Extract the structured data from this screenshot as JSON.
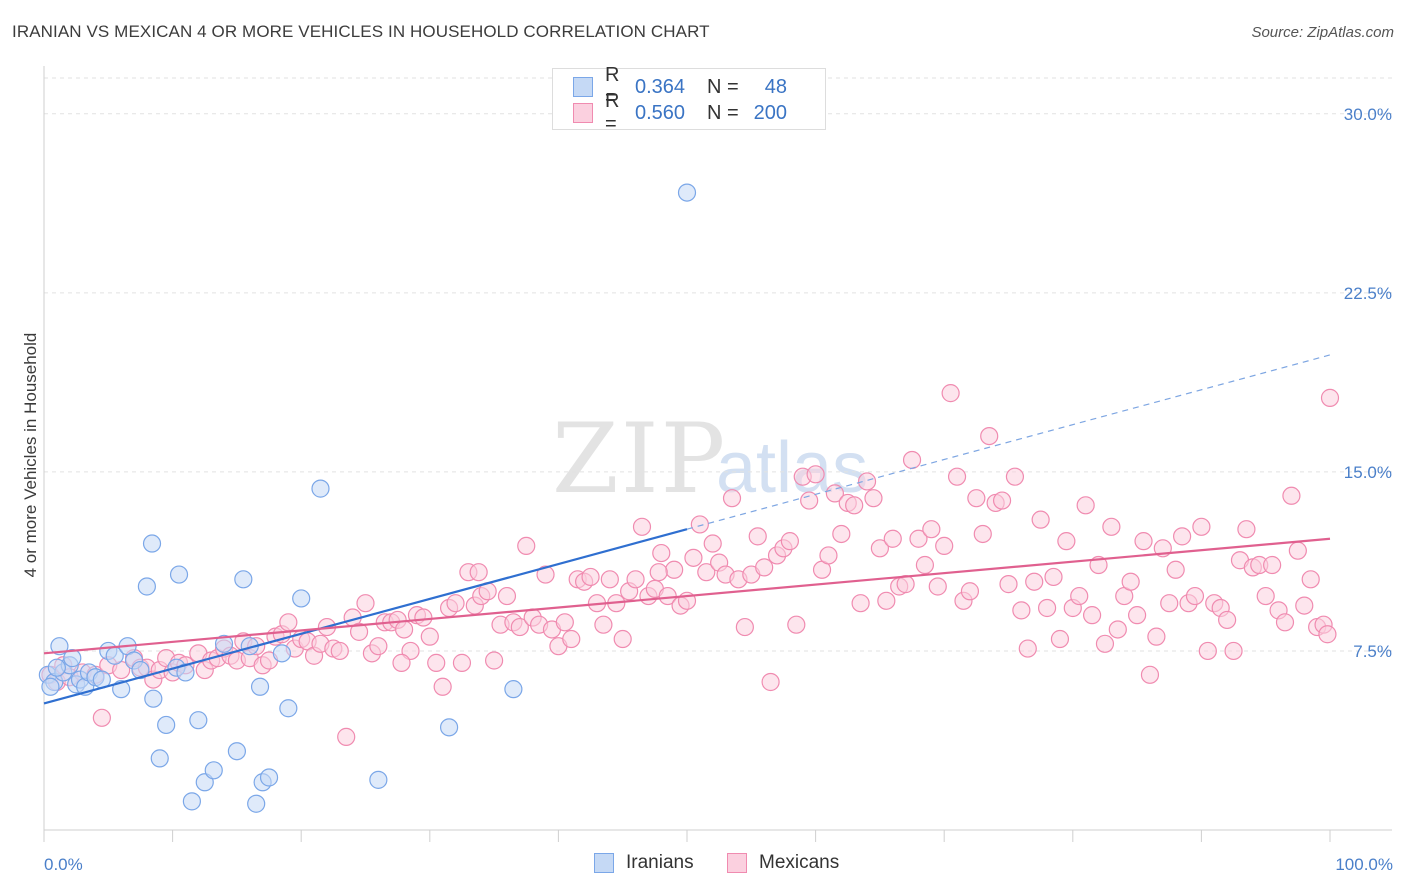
{
  "title": "IRANIAN VS MEXICAN 4 OR MORE VEHICLES IN HOUSEHOLD CORRELATION CHART",
  "source": "Source: ZipAtlas.com",
  "watermark": {
    "zip": "ZIP",
    "atlas": "atlas"
  },
  "legend": {
    "series": [
      {
        "r_label": "R =",
        "r_value": "0.364",
        "n_label": "N =",
        "n_value": "48",
        "color": "#7ba7e8",
        "fill": "#c5d9f5"
      },
      {
        "r_label": "R =",
        "r_value": "0.560",
        "n_label": "N =",
        "n_value": "200",
        "color": "#f08bb0",
        "fill": "#fbd0df"
      }
    ]
  },
  "bottom_legend": [
    {
      "label": "Iranians",
      "color": "#7ba7e8",
      "fill": "#c5d9f5"
    },
    {
      "label": "Mexicans",
      "color": "#f08bb0",
      "fill": "#fbd0df"
    }
  ],
  "chart_data": {
    "type": "scatter",
    "title": "IRANIAN VS MEXICAN 4 OR MORE VEHICLES IN HOUSEHOLD CORRELATION CHART",
    "xlabel": "",
    "ylabel": "4 or more Vehicles in Household",
    "xlim": [
      0,
      100
    ],
    "ylim": [
      0,
      31.5
    ],
    "x_tick_labels": [
      {
        "value": 0,
        "label": "0.0%"
      },
      {
        "value": 100,
        "label": "100.0%"
      }
    ],
    "y_ticks": [
      {
        "value": 7.5,
        "label": "7.5%"
      },
      {
        "value": 15,
        "label": "15.0%"
      },
      {
        "value": 22.5,
        "label": "22.5%"
      },
      {
        "value": 30,
        "label": "30.0%"
      }
    ],
    "x_minor_ticks": [
      0,
      10,
      20,
      30,
      40,
      50,
      60,
      70,
      80,
      90,
      100
    ],
    "series": [
      {
        "name": "Iranians",
        "color": "#7ba7e8",
        "fill": "#c5d9f5",
        "trend": {
          "x0": 0,
          "y0": 5.3,
          "x1": 50,
          "y1": 12.6,
          "dash_to_x": 100,
          "dash_to_y": 19.9,
          "line_color": "#2f6fd0"
        },
        "points": [
          [
            0.3,
            6.5
          ],
          [
            0.8,
            6.2
          ],
          [
            1.2,
            7.7
          ],
          [
            1.5,
            6.6
          ],
          [
            2.0,
            6.9
          ],
          [
            2.5,
            6.1
          ],
          [
            2.8,
            6.3
          ],
          [
            3.2,
            6.0
          ],
          [
            3.5,
            6.6
          ],
          [
            4.0,
            6.4
          ],
          [
            4.5,
            6.3
          ],
          [
            5.0,
            7.5
          ],
          [
            5.5,
            7.3
          ],
          [
            6.0,
            5.9
          ],
          [
            6.5,
            7.7
          ],
          [
            7.0,
            7.1
          ],
          [
            7.5,
            6.7
          ],
          [
            8.0,
            10.2
          ],
          [
            8.4,
            12.0
          ],
          [
            8.5,
            5.5
          ],
          [
            9.0,
            3.0
          ],
          [
            9.5,
            4.4
          ],
          [
            10.3,
            6.8
          ],
          [
            10.5,
            10.7
          ],
          [
            11.0,
            6.6
          ],
          [
            11.5,
            1.2
          ],
          [
            12.0,
            4.6
          ],
          [
            12.5,
            2.0
          ],
          [
            13.2,
            2.5
          ],
          [
            14.0,
            7.8
          ],
          [
            15.0,
            3.3
          ],
          [
            15.5,
            10.5
          ],
          [
            16.0,
            7.7
          ],
          [
            16.5,
            1.1
          ],
          [
            16.8,
            6.0
          ],
          [
            17.0,
            2.0
          ],
          [
            17.5,
            2.2
          ],
          [
            18.5,
            7.4
          ],
          [
            19.0,
            5.1
          ],
          [
            20.0,
            9.7
          ],
          [
            21.5,
            14.3
          ],
          [
            26.0,
            2.1
          ],
          [
            31.5,
            4.3
          ],
          [
            36.5,
            5.9
          ],
          [
            50.0,
            26.7
          ],
          [
            0.5,
            6.0
          ],
          [
            1.0,
            6.8
          ],
          [
            2.2,
            7.2
          ]
        ]
      },
      {
        "name": "Mexicans",
        "color": "#f08bb0",
        "fill": "#fbd0df",
        "trend": {
          "x0": 0,
          "y0": 7.4,
          "x1": 100,
          "y1": 12.2,
          "line_color": "#e0608f"
        },
        "points": [
          [
            0.5,
            6.5
          ],
          [
            1.0,
            6.2
          ],
          [
            1.5,
            6.9
          ],
          [
            2.0,
            6.4
          ],
          [
            3.0,
            6.6
          ],
          [
            4.0,
            6.5
          ],
          [
            4.5,
            4.7
          ],
          [
            5.0,
            6.9
          ],
          [
            6.0,
            6.7
          ],
          [
            7.0,
            7.2
          ],
          [
            7.5,
            6.8
          ],
          [
            8.0,
            6.8
          ],
          [
            8.5,
            6.3
          ],
          [
            9.0,
            6.7
          ],
          [
            9.5,
            7.2
          ],
          [
            10.0,
            6.6
          ],
          [
            10.5,
            7.0
          ],
          [
            11.0,
            6.9
          ],
          [
            12.0,
            7.4
          ],
          [
            12.5,
            6.7
          ],
          [
            13.0,
            7.1
          ],
          [
            13.5,
            7.2
          ],
          [
            14.0,
            7.6
          ],
          [
            14.5,
            7.3
          ],
          [
            15.0,
            7.1
          ],
          [
            15.5,
            7.9
          ],
          [
            16.0,
            7.2
          ],
          [
            16.5,
            7.7
          ],
          [
            17.0,
            6.9
          ],
          [
            17.5,
            7.1
          ],
          [
            18.0,
            8.1
          ],
          [
            18.5,
            8.2
          ],
          [
            19.0,
            8.7
          ],
          [
            19.5,
            7.6
          ],
          [
            20.0,
            8.0
          ],
          [
            20.5,
            7.9
          ],
          [
            21.0,
            7.3
          ],
          [
            21.5,
            7.8
          ],
          [
            22.0,
            8.5
          ],
          [
            22.5,
            7.6
          ],
          [
            23.0,
            7.5
          ],
          [
            23.5,
            3.9
          ],
          [
            24.0,
            8.9
          ],
          [
            24.5,
            8.3
          ],
          [
            25.0,
            9.5
          ],
          [
            25.5,
            7.4
          ],
          [
            26.0,
            7.7
          ],
          [
            26.5,
            8.7
          ],
          [
            27.0,
            8.7
          ],
          [
            27.5,
            8.8
          ],
          [
            28.0,
            8.4
          ],
          [
            28.5,
            7.5
          ],
          [
            29.0,
            9.0
          ],
          [
            29.5,
            8.9
          ],
          [
            30.0,
            8.1
          ],
          [
            30.5,
            7.0
          ],
          [
            31.0,
            6.0
          ],
          [
            31.5,
            9.3
          ],
          [
            32.0,
            9.5
          ],
          [
            32.5,
            7.0
          ],
          [
            33.0,
            10.8
          ],
          [
            33.5,
            9.4
          ],
          [
            34.0,
            9.8
          ],
          [
            34.5,
            10.0
          ],
          [
            35.0,
            7.1
          ],
          [
            35.5,
            8.6
          ],
          [
            36.0,
            9.8
          ],
          [
            36.5,
            8.7
          ],
          [
            37.0,
            8.5
          ],
          [
            37.5,
            11.9
          ],
          [
            38.0,
            8.9
          ],
          [
            38.5,
            8.6
          ],
          [
            39.0,
            10.7
          ],
          [
            39.5,
            8.4
          ],
          [
            40.0,
            7.7
          ],
          [
            40.5,
            8.7
          ],
          [
            41.0,
            8.0
          ],
          [
            41.5,
            10.5
          ],
          [
            42.0,
            10.4
          ],
          [
            42.5,
            10.6
          ],
          [
            43.0,
            9.5
          ],
          [
            43.5,
            8.6
          ],
          [
            44.0,
            10.5
          ],
          [
            44.5,
            9.5
          ],
          [
            45.0,
            8.0
          ],
          [
            45.5,
            10.0
          ],
          [
            46.0,
            10.5
          ],
          [
            46.5,
            12.7
          ],
          [
            47.0,
            9.8
          ],
          [
            47.5,
            10.1
          ],
          [
            48.0,
            11.6
          ],
          [
            48.5,
            9.8
          ],
          [
            49.0,
            10.9
          ],
          [
            49.5,
            9.4
          ],
          [
            50.0,
            9.6
          ],
          [
            50.5,
            11.4
          ],
          [
            51.0,
            12.8
          ],
          [
            51.5,
            10.8
          ],
          [
            52.0,
            12.0
          ],
          [
            52.5,
            11.2
          ],
          [
            53.0,
            10.7
          ],
          [
            53.5,
            13.9
          ],
          [
            54.0,
            10.5
          ],
          [
            54.5,
            8.5
          ],
          [
            55.0,
            10.7
          ],
          [
            55.5,
            12.3
          ],
          [
            56.0,
            11.0
          ],
          [
            56.5,
            6.2
          ],
          [
            57.0,
            11.5
          ],
          [
            57.5,
            11.8
          ],
          [
            58.0,
            12.1
          ],
          [
            58.5,
            8.6
          ],
          [
            59.0,
            14.8
          ],
          [
            59.5,
            13.8
          ],
          [
            60.0,
            14.9
          ],
          [
            60.5,
            10.9
          ],
          [
            61.0,
            11.5
          ],
          [
            61.5,
            14.1
          ],
          [
            62.0,
            12.4
          ],
          [
            62.5,
            13.7
          ],
          [
            63.0,
            13.6
          ],
          [
            63.5,
            9.5
          ],
          [
            64.0,
            14.6
          ],
          [
            64.5,
            13.9
          ],
          [
            65.0,
            11.8
          ],
          [
            65.5,
            9.6
          ],
          [
            66.0,
            12.2
          ],
          [
            66.5,
            10.2
          ],
          [
            67.0,
            10.3
          ],
          [
            67.5,
            15.5
          ],
          [
            68.0,
            12.2
          ],
          [
            68.5,
            11.1
          ],
          [
            69.0,
            12.6
          ],
          [
            69.5,
            10.2
          ],
          [
            70.0,
            11.9
          ],
          [
            70.5,
            18.3
          ],
          [
            71.0,
            14.8
          ],
          [
            71.5,
            9.6
          ],
          [
            72.0,
            10.0
          ],
          [
            72.5,
            13.9
          ],
          [
            73.0,
            12.4
          ],
          [
            73.5,
            16.5
          ],
          [
            74.0,
            13.7
          ],
          [
            74.5,
            13.8
          ],
          [
            75.0,
            10.3
          ],
          [
            75.5,
            14.8
          ],
          [
            76.0,
            9.2
          ],
          [
            76.5,
            7.6
          ],
          [
            77.0,
            10.4
          ],
          [
            77.5,
            13.0
          ],
          [
            78.0,
            9.3
          ],
          [
            78.5,
            10.6
          ],
          [
            79.0,
            8.0
          ],
          [
            79.5,
            12.1
          ],
          [
            80.0,
            9.3
          ],
          [
            80.5,
            9.8
          ],
          [
            81.0,
            13.6
          ],
          [
            81.5,
            9.0
          ],
          [
            82.0,
            11.1
          ],
          [
            82.5,
            7.8
          ],
          [
            83.0,
            12.7
          ],
          [
            83.5,
            8.4
          ],
          [
            84.0,
            9.8
          ],
          [
            84.5,
            10.4
          ],
          [
            85.0,
            9.0
          ],
          [
            85.5,
            12.1
          ],
          [
            86.0,
            6.5
          ],
          [
            86.5,
            8.1
          ],
          [
            87.0,
            11.8
          ],
          [
            87.5,
            9.5
          ],
          [
            88.0,
            10.9
          ],
          [
            88.5,
            12.3
          ],
          [
            89.0,
            9.5
          ],
          [
            89.5,
            9.8
          ],
          [
            90.0,
            12.7
          ],
          [
            90.5,
            7.5
          ],
          [
            91.0,
            9.5
          ],
          [
            91.5,
            9.3
          ],
          [
            92.0,
            8.8
          ],
          [
            92.5,
            7.5
          ],
          [
            93.0,
            11.3
          ],
          [
            93.5,
            12.6
          ],
          [
            94.0,
            11.0
          ],
          [
            94.5,
            11.1
          ],
          [
            95.0,
            9.8
          ],
          [
            95.5,
            11.1
          ],
          [
            96.0,
            9.2
          ],
          [
            96.5,
            8.7
          ],
          [
            97.0,
            14.0
          ],
          [
            97.5,
            11.7
          ],
          [
            98.0,
            9.4
          ],
          [
            98.5,
            10.5
          ],
          [
            99.0,
            8.5
          ],
          [
            99.5,
            8.6
          ],
          [
            99.8,
            8.2
          ],
          [
            100.0,
            18.1
          ],
          [
            47.8,
            10.8
          ],
          [
            27.8,
            7.0
          ],
          [
            33.8,
            10.8
          ]
        ]
      }
    ]
  }
}
